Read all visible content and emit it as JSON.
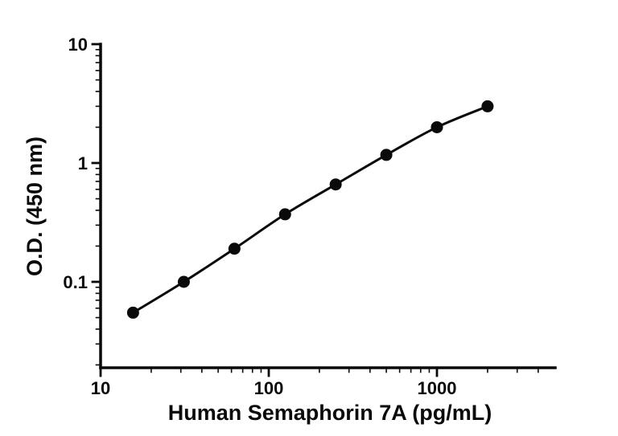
{
  "chart_data": {
    "type": "line",
    "title": "",
    "xlabel": "Human Semaphorin 7A (pg/mL)",
    "ylabel": "O.D. (450 nm)",
    "x_scale": "log",
    "y_scale": "log",
    "x": [
      15.6,
      31.25,
      62.5,
      125,
      250,
      500,
      1000,
      2000
    ],
    "y": [
      0.055,
      0.1,
      0.19,
      0.37,
      0.66,
      1.17,
      2.0,
      3.0
    ],
    "x_ticks": [
      10,
      100,
      1000
    ],
    "x_tick_labels": [
      "10",
      "100",
      "1000"
    ],
    "y_ticks": [
      0.1,
      1,
      10
    ],
    "y_tick_labels": [
      "0.1",
      "1",
      "10"
    ],
    "xlim": [
      10,
      5000
    ],
    "ylim": [
      0.019,
      10
    ],
    "grid": "off",
    "legend": "none",
    "line_color": "#0a0a0a",
    "marker_color": "#0a0a0a",
    "axis_color": "#0a0a0a",
    "background_color": "#ffffff"
  }
}
